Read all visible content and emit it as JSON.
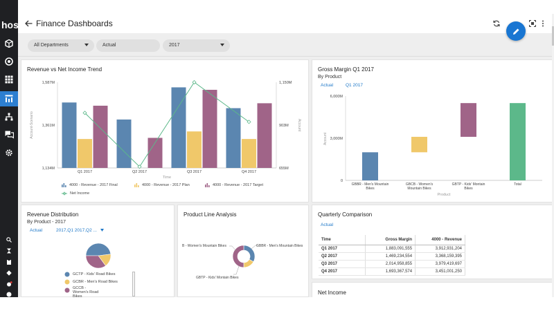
{
  "app": {
    "brand": "host",
    "page_title": "Finance Dashboards",
    "accent": "#1976d2"
  },
  "nav_icons": [
    "cube-icon",
    "circle-target-icon",
    "grid-icon",
    "dashboard-icon",
    "hierarchy-icon",
    "chat-icon",
    "gear-icon"
  ],
  "rail_small_icons": [
    "search-icon",
    "hourglass-icon",
    "clipboard-icon",
    "diamond-icon",
    "bell-icon",
    "help-icon"
  ],
  "filters": {
    "department": "All Departments",
    "scenario": "Actual",
    "year": "2017"
  },
  "revenue_chart": {
    "title": "Revenue vs Net Income Trend",
    "xlabel": "Time",
    "ylabel_left": "Account-Scenario",
    "ylabel_right": "Account",
    "left_ticks": [
      "1,587M",
      "1,361M",
      "1,134M"
    ],
    "right_ticks": [
      "1,150M",
      "903M",
      "655M"
    ],
    "legend": [
      "4000 - Revenue - 2017 Final",
      "4000 - Revenue - 2017 Plan",
      "4000 - Revenue - 2017 Target",
      "Net Income"
    ]
  },
  "gross_margin": {
    "title": "Gross Margin Q1 2017",
    "subtitle": "By Product",
    "col_a": "Actual",
    "col_b": "Q1 2017",
    "ylabel": "Account",
    "xlabel": "Product",
    "y_ticks": [
      "6,000M",
      "3,000M",
      "0"
    ],
    "cat_1a": "GBBR - Men's Mountain",
    "cat_1b": "Bikes",
    "cat_2a": "GBCB - Women's",
    "cat_2b": "Mountain Bikes",
    "cat_3a": "GBTP - Kids' Montain",
    "cat_3b": "Bikes",
    "cat_4a": "Total"
  },
  "revenue_distribution": {
    "title": "Revenue Distribution",
    "subtitle": "By Product - 2017",
    "actual": "Actual",
    "period": "2017,Q1 2017,Q2 ...",
    "legend_1": "GCTP - Kids' Road Bikes",
    "legend_2": "GCBR - Men's Road Bikes",
    "legend_3a": "GCCB -",
    "legend_3b": "Women's Road",
    "legend_3c": "Bikes"
  },
  "product_line": {
    "title": "Product Line Analysis",
    "label_left": "B - Women's Mountain Bikes",
    "label_right": "GBBR - Men's Mountain Bikes",
    "label_bottom": "GBTP - Kids' Montain Bikes"
  },
  "quarterly": {
    "title": "Quarterly Comparison",
    "actual": "Actual",
    "headers": [
      "Time",
      "Gross Margin",
      "4000 - Revenue"
    ],
    "rows": [
      [
        "Q1 2017",
        "1,883,091,555",
        "3,912,931,204"
      ],
      [
        "Q2 2017",
        "1,469,234,554",
        "3,368,159,395"
      ],
      [
        "Q3 2017",
        "2,014,958,855",
        "3,979,419,697"
      ],
      [
        "Q4 2017",
        "1,693,367,574",
        "3,451,001,250"
      ]
    ]
  },
  "net_income": {
    "title": "Net Income"
  },
  "colors": {
    "final": "#5b86b0",
    "plan": "#f0c86a",
    "target": "#a06488",
    "net_income": "#5cb88a",
    "total": "#5cb88a"
  },
  "chart_data": [
    {
      "type": "bar",
      "title": "Revenue vs Net Income Trend",
      "xlabel": "Time",
      "ylabel": "Account-Scenario",
      "categories": [
        "Q1 2017",
        "Q2 2017",
        "Q3 2017",
        "Q4 2017"
      ],
      "ylim": [
        1134,
        1587
      ],
      "y2lim": [
        655,
        1150
      ],
      "series": [
        {
          "name": "4000 - Revenue - 2017 Final",
          "axis": "left",
          "values": [
            1480,
            1390,
            1560,
            1450
          ]
        },
        {
          "name": "4000 - Revenue - 2017 Plan",
          "axis": "left",
          "values": [
            1287,
            1134,
            1327,
            1287
          ]
        },
        {
          "name": "4000 - Revenue - 2017 Target",
          "axis": "left",
          "values": [
            1463,
            1293,
            1547,
            1476
          ]
        },
        {
          "name": "Net Income",
          "type": "line",
          "axis": "right",
          "values": [
            973,
            662,
            1150,
            921
          ]
        }
      ]
    },
    {
      "type": "bar",
      "title": "Gross Margin Q1 2017",
      "subtitle": "By Product",
      "xlabel": "Product",
      "ylabel": "Account",
      "ylim": [
        0,
        6000
      ],
      "categories": [
        "GBBR - Men's Mountain Bikes",
        "GBCB - Women's Mountain Bikes",
        "GBTP - Kids' Montain Bikes",
        "Total"
      ],
      "values": [
        [
          0,
          2000
        ],
        [
          2000,
          3100
        ],
        [
          3100,
          5500
        ],
        [
          0,
          5500
        ]
      ]
    },
    {
      "type": "pie",
      "title": "Revenue Distribution",
      "subtitle": "By Product - 2017",
      "categories": [
        "GCTP - Kids' Road Bikes",
        "GCBR - Men's Road Bikes",
        "GCCB - Women's Road Bikes"
      ],
      "values": [
        48,
        17,
        35
      ]
    },
    {
      "type": "pie",
      "title": "Product Line Analysis",
      "categories": [
        "GBBR - Men's Mountain Bikes",
        "B - Women's Mountain Bikes",
        "GBTP - Kids' Montain Bikes"
      ],
      "values": [
        33,
        17,
        50
      ]
    },
    {
      "type": "table",
      "title": "Quarterly Comparison",
      "columns": [
        "Time",
        "Gross Margin",
        "4000 - Revenue"
      ],
      "rows": [
        [
          "Q1 2017",
          1883091555,
          3912931204
        ],
        [
          "Q2 2017",
          1469234554,
          3368159395
        ],
        [
          "Q3 2017",
          2014958855,
          3979419697
        ],
        [
          "Q4 2017",
          1693367574,
          3451001250
        ]
      ]
    }
  ]
}
